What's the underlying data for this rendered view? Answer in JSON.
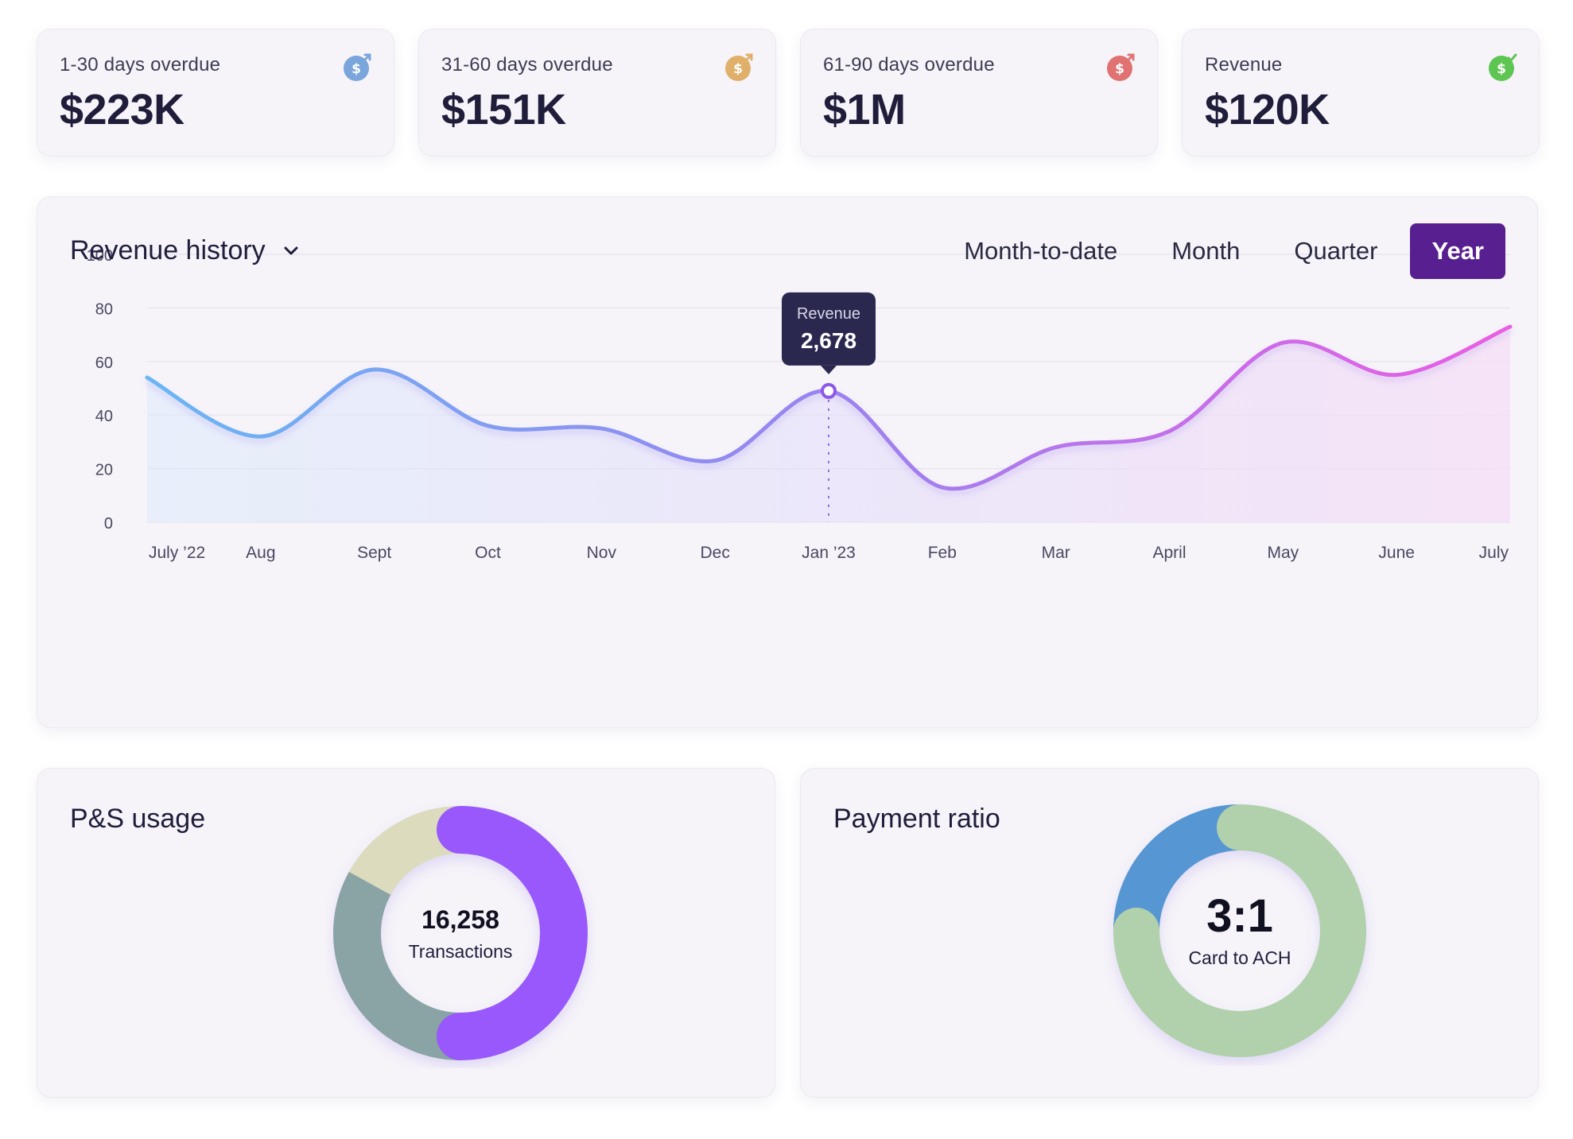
{
  "kpis": [
    {
      "label": "1-30 days overdue",
      "value": "$223K",
      "icon": "dollar-arrow-icon",
      "color": "#7aa6db"
    },
    {
      "label": "31-60 days overdue",
      "value": "$151K",
      "icon": "dollar-arrow-icon",
      "color": "#e0b06a"
    },
    {
      "label": "61-90 days overdue",
      "value": "$1M",
      "icon": "dollar-arrow-icon",
      "color": "#e07272"
    },
    {
      "label": "Revenue",
      "value": "$120K",
      "icon": "dollar-check-icon",
      "color": "#5ec552"
    }
  ],
  "revenue": {
    "title": "Revenue history",
    "periods": [
      "Month-to-date",
      "Month",
      "Quarter",
      "Year"
    ],
    "active_period": "Year",
    "tooltip": {
      "label": "Revenue",
      "value": "2,678"
    }
  },
  "chart_data": {
    "type": "line",
    "title": "Revenue history",
    "categories": [
      "July ’22",
      "Aug",
      "Sept",
      "Oct",
      "Nov",
      "Dec",
      "Jan ’23",
      "Feb",
      "Mar",
      "April",
      "May",
      "June",
      "July"
    ],
    "series": [
      {
        "name": "Revenue",
        "values": [
          54,
          32,
          57,
          36,
          35,
          23,
          49,
          13,
          28,
          34,
          67,
          55,
          73
        ]
      }
    ],
    "ylim": [
      0,
      100
    ],
    "yticks": [
      0,
      20,
      40,
      60,
      80,
      100
    ],
    "highlight_index": 6,
    "grid": true,
    "gradient": [
      "#6ab6f4",
      "#9a83f0",
      "#ea5ee4"
    ]
  },
  "ps_usage": {
    "title": "P&S usage",
    "center_value": "16,258",
    "center_label": "Transactions",
    "segments": [
      {
        "name": "segment-purple",
        "fraction": 0.5,
        "color": "#9959fb"
      },
      {
        "name": "segment-slate",
        "fraction": 0.33,
        "color": "#8aa3a5"
      },
      {
        "name": "segment-sand",
        "fraction": 0.17,
        "color": "#dcdbbe"
      }
    ]
  },
  "payment_ratio": {
    "title": "Payment ratio",
    "center_value": "3:1",
    "center_label": "Card to ACH",
    "segments": [
      {
        "name": "segment-card",
        "fraction": 0.75,
        "color": "#b0d1ab"
      },
      {
        "name": "segment-ach",
        "fraction": 0.25,
        "color": "#5696d3"
      }
    ]
  }
}
